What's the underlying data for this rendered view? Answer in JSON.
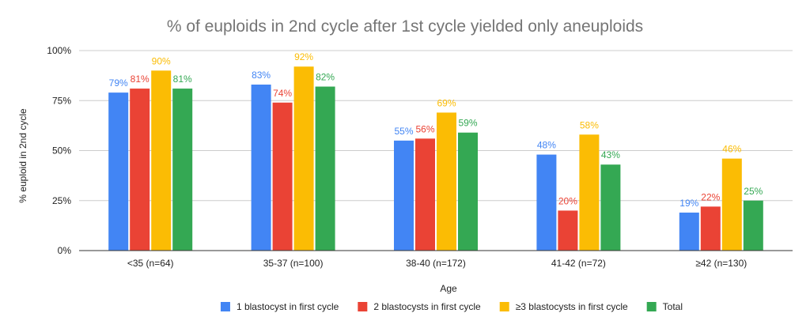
{
  "chart_data": {
    "type": "bar",
    "title": "% of euploids in 2nd cycle after 1st cycle yielded only aneuploids",
    "xlabel": "Age",
    "ylabel": "% euploid in 2nd cycle",
    "categories": [
      "<35 (n=64)",
      "35-37 (n=100)",
      "38-40 (n=172)",
      "41-42 (n=72)",
      "≥42 (n=130)"
    ],
    "ylim": [
      0,
      100
    ],
    "yticks": [
      "0%",
      "25%",
      "50%",
      "75%",
      "100%"
    ],
    "grid": true,
    "legend_position": "bottom",
    "series": [
      {
        "name": "1 blastocyst in first cycle",
        "color": "#4285f4",
        "values": [
          79,
          83,
          55,
          48,
          19
        ],
        "labels": [
          "79%",
          "83%",
          "55%",
          "48%",
          "19%"
        ]
      },
      {
        "name": "2 blastocysts in first cycle",
        "color": "#ea4335",
        "values": [
          81,
          74,
          56,
          20,
          22
        ],
        "labels": [
          "81%",
          "74%",
          "56%",
          "20%",
          "22%"
        ]
      },
      {
        "name": "≥3 blastocysts in first cycle",
        "color": "#fbbc04",
        "values": [
          90,
          92,
          69,
          58,
          46
        ],
        "labels": [
          "90%",
          "92%",
          "69%",
          "58%",
          "46%"
        ]
      },
      {
        "name": "Total",
        "color": "#34a853",
        "values": [
          81,
          82,
          59,
          43,
          25
        ],
        "labels": [
          "81%",
          "82%",
          "59%",
          "43%",
          "25%"
        ]
      }
    ]
  }
}
